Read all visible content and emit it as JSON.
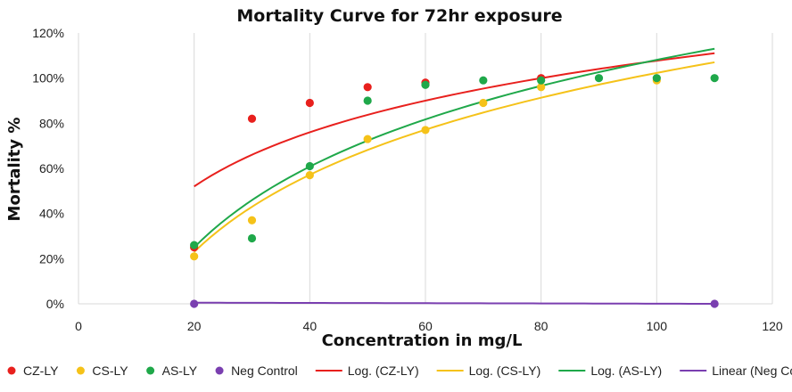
{
  "chart_data": {
    "type": "scatter",
    "title": "Mortality Curve for 72hr exposure",
    "xlabel": "Concentration in mg/L",
    "ylabel": "Mortality  %",
    "xlim": [
      0,
      120
    ],
    "ylim": [
      0,
      1.2
    ],
    "x_ticks": [
      0,
      20,
      40,
      60,
      80,
      100,
      120
    ],
    "x_tick_labels": [
      "0",
      "20",
      "40",
      "60",
      "80",
      "100",
      "120"
    ],
    "y_ticks": [
      0,
      0.2,
      0.4,
      0.6,
      0.8,
      1.0,
      1.2
    ],
    "y_tick_labels": [
      "0%",
      "20%",
      "40%",
      "60%",
      "80%",
      "100%",
      "120%"
    ],
    "grid": "vertical",
    "legend": "bottom",
    "series": [
      {
        "name": "CZ-LY",
        "color": "#e8201d",
        "points": [
          [
            20,
            0.25
          ],
          [
            30,
            0.82
          ],
          [
            40,
            0.89
          ],
          [
            50,
            0.96
          ],
          [
            60,
            0.98
          ],
          [
            80,
            1.0
          ]
        ]
      },
      {
        "name": "CS-LY",
        "color": "#f5c219",
        "points": [
          [
            20,
            0.21
          ],
          [
            30,
            0.37
          ],
          [
            40,
            0.57
          ],
          [
            50,
            0.73
          ],
          [
            60,
            0.77
          ],
          [
            70,
            0.89
          ],
          [
            80,
            0.96
          ],
          [
            100,
            0.99
          ]
        ]
      },
      {
        "name": "AS-LY",
        "color": "#1fa84a",
        "points": [
          [
            20,
            0.26
          ],
          [
            30,
            0.29
          ],
          [
            40,
            0.61
          ],
          [
            50,
            0.9
          ],
          [
            60,
            0.97
          ],
          [
            70,
            0.99
          ],
          [
            80,
            0.99
          ],
          [
            90,
            1.0
          ],
          [
            100,
            1.0
          ],
          [
            110,
            1.0
          ]
        ]
      },
      {
        "name": "Neg Control",
        "color": "#7a3fb0",
        "points": [
          [
            20,
            0.0
          ],
          [
            110,
            0.0
          ]
        ]
      }
    ],
    "trendlines": [
      {
        "name": "Log. (CZ-LY)",
        "color": "#e8201d",
        "kind": "log",
        "x_range": [
          20,
          110
        ],
        "y_at_start": 0.52,
        "y_at_end": 1.11
      },
      {
        "name": "Log. (CS-LY)",
        "color": "#f5c219",
        "kind": "log",
        "x_range": [
          20,
          110
        ],
        "y_at_start": 0.23,
        "y_at_end": 1.07
      },
      {
        "name": "Log. (AS-LY)",
        "color": "#1fa84a",
        "kind": "log",
        "x_range": [
          20,
          110
        ],
        "y_at_start": 0.25,
        "y_at_end": 1.13
      },
      {
        "name": "Linear (Neg Control )",
        "color": "#7a3fb0",
        "kind": "linear",
        "x_range": [
          20,
          110
        ],
        "y_at_start": 0.005,
        "y_at_end": 0.0
      }
    ]
  }
}
